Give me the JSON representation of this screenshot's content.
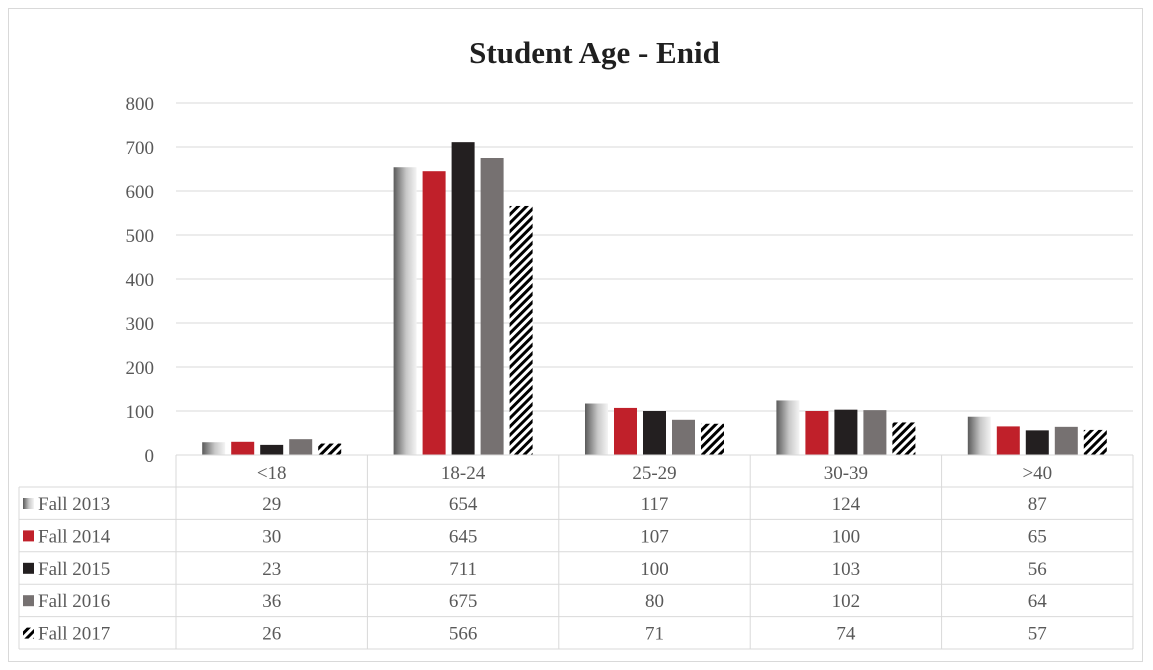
{
  "chart_data": {
    "type": "bar",
    "title": "Student Age - Enid",
    "categories": [
      "<18",
      "18-24",
      "25-29",
      "30-39",
      ">40"
    ],
    "ylim": [
      0,
      800
    ],
    "yticks": [
      0,
      100,
      200,
      300,
      400,
      500,
      600,
      700,
      800
    ],
    "grid": true,
    "legend": "data-table",
    "series": [
      {
        "name": "Fall 2013",
        "values": [
          29,
          654,
          117,
          124,
          87
        ],
        "style": "gradient",
        "color": "#808080"
      },
      {
        "name": "Fall 2014",
        "values": [
          30,
          645,
          107,
          100,
          65
        ],
        "style": "solid",
        "color": "#c0202a"
      },
      {
        "name": "Fall 2015",
        "values": [
          23,
          711,
          100,
          103,
          56
        ],
        "style": "solid",
        "color": "#231f20"
      },
      {
        "name": "Fall 2016",
        "values": [
          36,
          675,
          80,
          102,
          64
        ],
        "style": "solid",
        "color": "#767171"
      },
      {
        "name": "Fall 2017",
        "values": [
          26,
          566,
          71,
          74,
          57
        ],
        "style": "hatch",
        "color": "#000000"
      }
    ]
  }
}
